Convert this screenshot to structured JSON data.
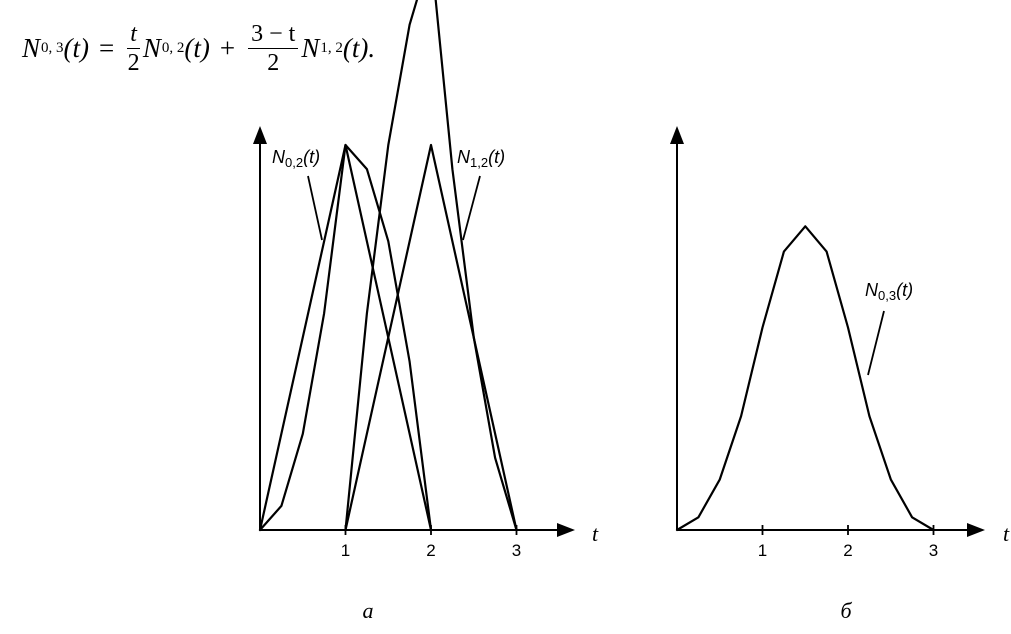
{
  "formula": {
    "lhs_symbol": "N",
    "lhs_sub": "0, 3",
    "lhs_arg": "(t)",
    "eq": "=",
    "frac1_num": "t",
    "frac1_den": "2",
    "term1_symbol": "N",
    "term1_sub": "0, 2",
    "term1_arg": "(t)",
    "plus": "+",
    "frac2_num": "3 − t",
    "frac2_den": "2",
    "term2_symbol": "N",
    "term2_sub": "1, 2",
    "term2_arg": "(t)."
  },
  "chart_data": [
    {
      "panel": "а",
      "type": "line",
      "xlabel": "t",
      "ylabel": "",
      "xlim": [
        0,
        3.6
      ],
      "ylim": [
        0,
        1.1
      ],
      "x_ticks": [
        1,
        2,
        3
      ],
      "grid": false,
      "series": [
        {
          "name": "N0,2(t)",
          "x": [
            0,
            1,
            2
          ],
          "y": [
            0,
            1,
            0
          ]
        },
        {
          "name": "N1,2(t)",
          "x": [
            1,
            2,
            3
          ],
          "y": [
            0,
            1,
            0
          ]
        },
        {
          "x": [
            0,
            0.25,
            0.5,
            0.75,
            1,
            1.25,
            1.5,
            1.75,
            2
          ],
          "y": [
            0,
            0.0625,
            0.25,
            0.5625,
            1.0,
            0.9375,
            0.75,
            0.4375,
            0
          ]
        },
        {
          "x": [
            1,
            1.25,
            1.5,
            1.75,
            2,
            2.25,
            2.5,
            2.75,
            3
          ],
          "y": [
            0,
            0.5625,
            1.0,
            1.3125,
            1.5,
            0.9375,
            0.5,
            0.1875,
            0
          ]
        }
      ],
      "annotations": [
        {
          "text_base": "N",
          "text_sub": "0,2",
          "text_arg": "(t)"
        },
        {
          "text_base": "N",
          "text_sub": "1,2",
          "text_arg": "(t)"
        }
      ]
    },
    {
      "panel": "б",
      "type": "line",
      "xlabel": "t",
      "ylabel": "",
      "xlim": [
        0,
        3.6
      ],
      "ylim": [
        0,
        1.1
      ],
      "x_ticks": [
        1,
        2,
        3
      ],
      "grid": false,
      "series": [
        {
          "name": "N0,3(t)",
          "x": [
            0,
            0.25,
            0.5,
            0.75,
            1,
            1.25,
            1.5,
            1.75,
            2,
            2.25,
            2.5,
            2.75,
            3
          ],
          "y": [
            0,
            0.03125,
            0.125,
            0.28125,
            0.5,
            0.6875,
            0.75,
            0.6875,
            0.5,
            0.28125,
            0.125,
            0.03125,
            0
          ]
        }
      ],
      "annotations": [
        {
          "text_base": "N",
          "text_sub": "0,3",
          "text_arg": "(t)"
        }
      ]
    }
  ]
}
